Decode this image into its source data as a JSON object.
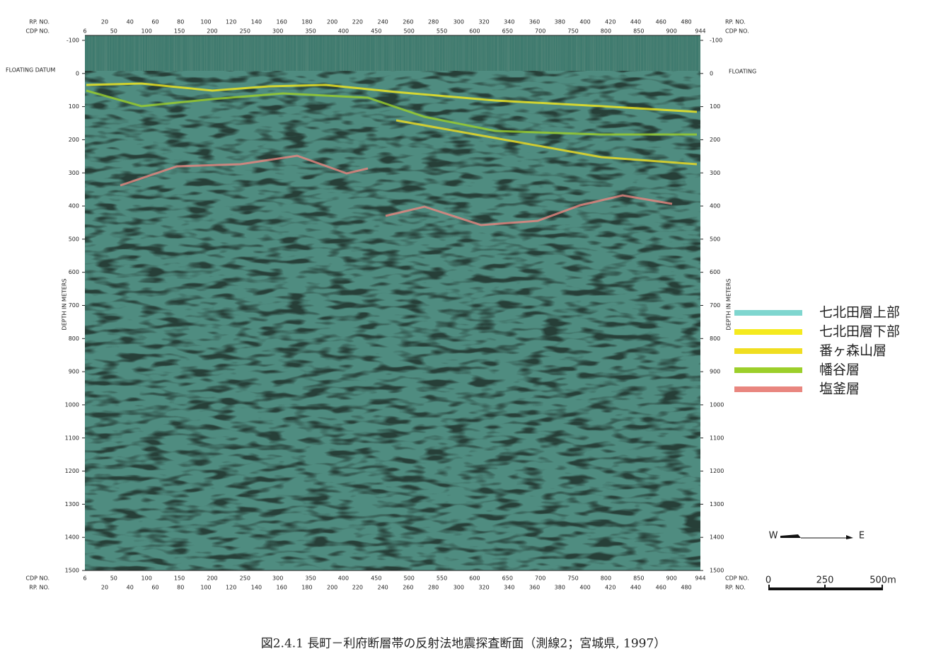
{
  "header": {
    "rp_label": "RP. NO.",
    "cdp_label": "CDP NO.",
    "floating_left": "FLOATING DATUM",
    "floating_right": "FLOATING",
    "depth_label": "DEPTH IN METERS"
  },
  "rp_ticks": [
    20,
    40,
    60,
    80,
    100,
    120,
    140,
    160,
    180,
    200,
    220,
    240,
    260,
    280,
    300,
    320,
    340,
    360,
    380,
    400,
    420,
    440,
    460,
    480
  ],
  "cdp_ticks": [
    6,
    50,
    100,
    150,
    200,
    250,
    300,
    350,
    400,
    450,
    500,
    550,
    600,
    650,
    700,
    750,
    800,
    850,
    900,
    944
  ],
  "depth_ticks": [
    -100,
    0,
    100,
    200,
    300,
    400,
    500,
    600,
    700,
    800,
    900,
    1000,
    1100,
    1200,
    1300,
    1400,
    1500
  ],
  "legend": [
    {
      "label": "七北田層上部",
      "color": "#7fd6cf"
    },
    {
      "label": "七北田層下部",
      "color": "#f5ea1e"
    },
    {
      "label": "番ヶ森山層",
      "color": "#f0de20"
    },
    {
      "label": "幡谷層",
      "color": "#9ccf2a"
    },
    {
      "label": "塩釜層",
      "color": "#e9867f"
    }
  ],
  "scale": {
    "west": "W",
    "east": "E",
    "ticks": [
      "0",
      "250",
      "500m"
    ]
  },
  "caption": "図2.4.1 長町－利府断層帯の反射法地震探査断面（測線2；宮城県, 1997）"
}
